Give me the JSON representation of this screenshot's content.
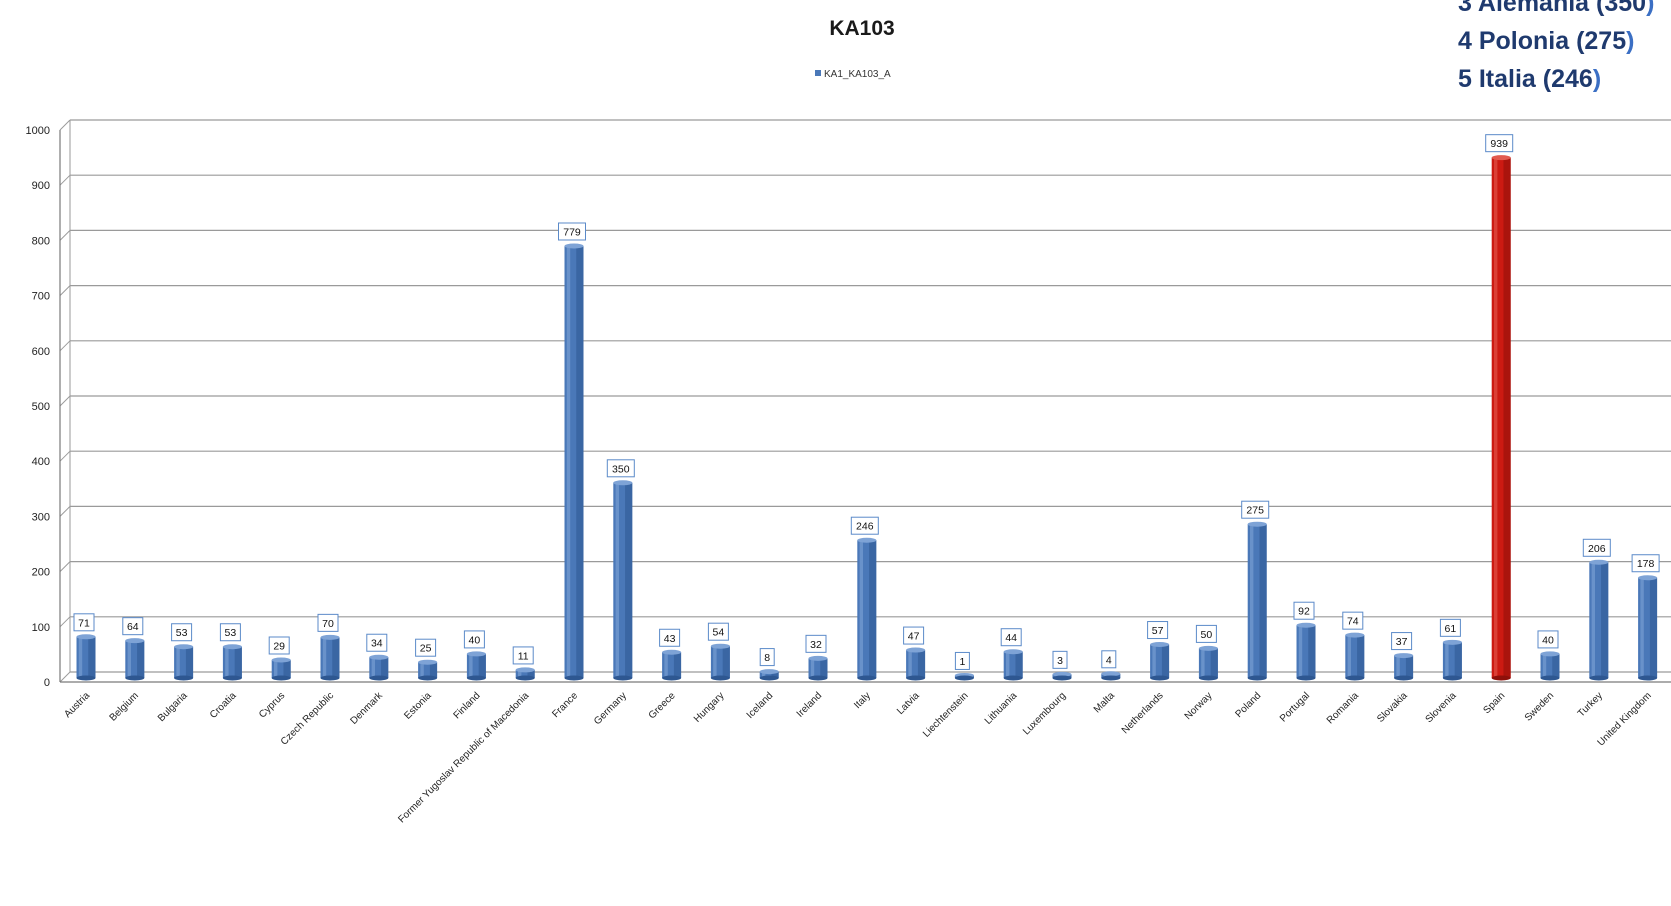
{
  "ranking": [
    {
      "text": "3 Alemania (350",
      "paren": ")"
    },
    {
      "text": "4 Polonia (275",
      "paren": ")"
    },
    {
      "text": "5 Italia (246",
      "paren": ")"
    }
  ],
  "chart_data": {
    "type": "bar",
    "title": "KA103",
    "legend": [
      "KA1_KA103_A"
    ],
    "legend_position": "top-center",
    "grid": true,
    "ylim": [
      0,
      1000
    ],
    "yticks": [
      0,
      100,
      200,
      300,
      400,
      500,
      600,
      700,
      800,
      900,
      1000
    ],
    "categories": [
      "Austria",
      "Belgium",
      "Bulgaria",
      "Croatia",
      "Cyprus",
      "Czech Republic",
      "Denmark",
      "Estonia",
      "Finland",
      "Former Yugoslav Republic of Macedonia",
      "France",
      "Germany",
      "Greece",
      "Hungary",
      "Iceland",
      "Ireland",
      "Italy",
      "Latvia",
      "Liechtenstein",
      "Lithuania",
      "Luxembourg",
      "Malta",
      "Netherlands",
      "Norway",
      "Poland",
      "Portugal",
      "Romania",
      "Slovakia",
      "Slovenia",
      "Spain",
      "Sweden",
      "Turkey",
      "United Kingdom"
    ],
    "series": [
      {
        "name": "KA1_KA103_A",
        "values": [
          71,
          64,
          53,
          53,
          29,
          70,
          34,
          25,
          40,
          11,
          779,
          350,
          43,
          54,
          8,
          32,
          246,
          47,
          1,
          44,
          3,
          4,
          57,
          50,
          275,
          92,
          74,
          37,
          61,
          939,
          40,
          206,
          178
        ]
      }
    ],
    "highlight": {
      "category": "Spain",
      "color": "#cc1a12"
    },
    "colors": {
      "bar": "#4a78b8",
      "bar_dark": "#2e5791",
      "bar_light": "#7ea3d6",
      "highlight": "#cc1a12",
      "grid": "#9a9a9a",
      "label_border": "#5b8ac9"
    }
  }
}
